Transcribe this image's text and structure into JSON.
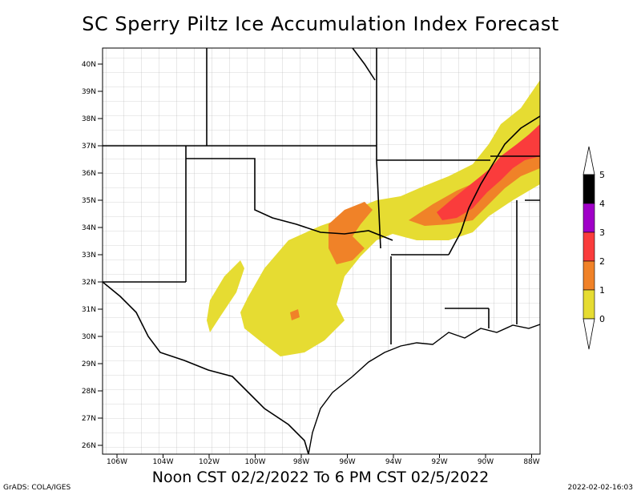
{
  "title": "SC Sperry Piltz Ice Accumulation Index Forecast",
  "subtitle": "Noon CST 02/2/2022 To 6 PM CST 02/5/2022",
  "credit": "GrADS: COLA/IGES",
  "timestamp": "2022-02-02-16:03",
  "lat_ticks": [
    "40N",
    "39N",
    "38N",
    "37N",
    "36N",
    "35N",
    "34N",
    "33N",
    "32N",
    "31N",
    "30N",
    "29N",
    "28N",
    "27N",
    "26N"
  ],
  "lon_ticks": [
    "106W",
    "104W",
    "102W",
    "100W",
    "98W",
    "96W",
    "94W",
    "92W",
    "90W",
    "88W"
  ],
  "legend": {
    "labels": [
      "5",
      "4",
      "3",
      "2",
      "1",
      "0"
    ],
    "colors": {
      "0": "#e6dc32",
      "1": "#f08228",
      "2": "#fa3c3c",
      "3": "#a000c8",
      "4": "#000000",
      "grid": "#a0a0a0",
      "state": "#000000"
    }
  }
}
